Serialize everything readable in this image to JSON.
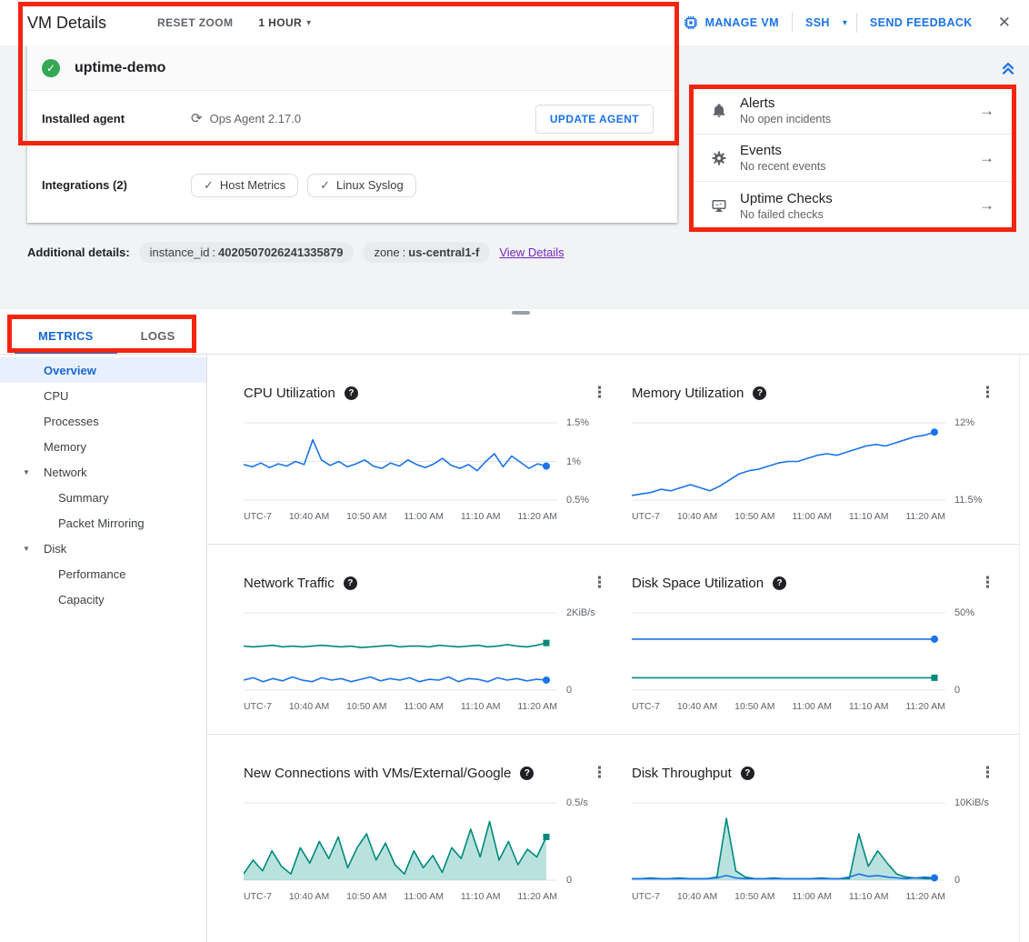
{
  "colors": {
    "primary_blue": "#1a73e8",
    "active_tab_blue": "#1967d2",
    "teal": "#00897b",
    "green": "#34a853",
    "annotation_red": "#f3250f",
    "view_details_purple": "#7627bb"
  },
  "header": {
    "title": "VM Details",
    "reset_zoom_label": "RESET ZOOM",
    "time_range_label": "1 HOUR",
    "manage_vm_label": "MANAGE VM",
    "ssh_label": "SSH",
    "send_feedback_label": "SEND FEEDBACK"
  },
  "vm": {
    "name": "uptime-demo",
    "installed_agent_label": "Installed agent",
    "agent_version": "Ops Agent 2.17.0",
    "update_agent_label": "UPDATE AGENT",
    "integrations_label": "Integrations (2)",
    "integrations": [
      {
        "label": "Host Metrics"
      },
      {
        "label": "Linux Syslog"
      }
    ]
  },
  "side_panel": {
    "items": [
      {
        "title": "Alerts",
        "subtitle": "No open incidents"
      },
      {
        "title": "Events",
        "subtitle": "No recent events"
      },
      {
        "title": "Uptime Checks",
        "subtitle": "No failed checks"
      }
    ]
  },
  "additional_details": {
    "label": "Additional details:",
    "separator": ":",
    "chips": [
      {
        "key": "instance_id",
        "value": "4020507026241335879"
      },
      {
        "key": "zone",
        "value": "us-central1-f"
      }
    ],
    "view_details_label": "View Details"
  },
  "tabs": [
    {
      "label": "METRICS"
    },
    {
      "label": "LOGS"
    }
  ],
  "sidebar": {
    "items": [
      {
        "label": "Overview"
      },
      {
        "label": "CPU"
      },
      {
        "label": "Processes"
      },
      {
        "label": "Memory"
      },
      {
        "label": "Network"
      },
      {
        "label": "Summary"
      },
      {
        "label": "Packet Mirroring"
      },
      {
        "label": "Disk"
      },
      {
        "label": "Performance"
      },
      {
        "label": "Capacity"
      }
    ]
  },
  "chart_data": [
    {
      "type": "line",
      "name": "cpu-utilization",
      "title": "CPU Utilization",
      "ymin": 0.5,
      "ymax": 1.5,
      "x_labels": [
        "UTC-7",
        "10:40 AM",
        "10:50 AM",
        "11:00 AM",
        "11:10 AM",
        "11:20 AM"
      ],
      "y_labels": [
        {
          "text": "1.5%",
          "frac": 1
        },
        {
          "text": "1%",
          "frac": 0.5
        },
        {
          "text": "0.5%",
          "frac": 0
        }
      ],
      "series": [
        {
          "color": "#1a73e8",
          "marker": "circle",
          "values": [
            0.96,
            0.93,
            0.98,
            0.92,
            0.97,
            0.94,
            1.0,
            0.96,
            1.28,
            1.02,
            0.95,
            1.0,
            0.93,
            0.97,
            1.02,
            0.94,
            0.91,
            0.98,
            0.94,
            1.02,
            0.96,
            0.92,
            0.97,
            1.04,
            0.95,
            0.91,
            0.96,
            0.88,
            1.0,
            1.1,
            0.93,
            1.07,
            0.99,
            0.91,
            0.97,
            0.94
          ]
        }
      ]
    },
    {
      "type": "line",
      "name": "memory-utilization",
      "title": "Memory Utilization",
      "ymin": 11.5,
      "ymax": 12,
      "x_labels": [
        "UTC-7",
        "10:40 AM",
        "10:50 AM",
        "11:00 AM",
        "11:10 AM",
        "11:20 AM"
      ],
      "y_labels": [
        {
          "text": "12%",
          "frac": 1
        },
        {
          "text": "11.5%",
          "frac": 0
        }
      ],
      "series": [
        {
          "color": "#1a73e8",
          "marker": "circle",
          "values": [
            11.53,
            11.54,
            11.55,
            11.57,
            11.56,
            11.58,
            11.6,
            11.58,
            11.56,
            11.59,
            11.63,
            11.67,
            11.69,
            11.7,
            11.72,
            11.74,
            11.75,
            11.75,
            11.77,
            11.79,
            11.8,
            11.79,
            11.81,
            11.83,
            11.85,
            11.86,
            11.85,
            11.87,
            11.89,
            11.91,
            11.92,
            11.94
          ]
        }
      ]
    },
    {
      "type": "line",
      "name": "network-traffic",
      "title": "Network Traffic",
      "ymin": 0,
      "ymax": 2,
      "x_labels": [
        "UTC-7",
        "10:40 AM",
        "10:50 AM",
        "11:00 AM",
        "11:10 AM",
        "11:20 AM"
      ],
      "y_labels": [
        {
          "text": "2KiB/s",
          "frac": 1
        },
        {
          "text": "0",
          "frac": 0
        }
      ],
      "series": [
        {
          "color": "#00897b",
          "marker": "square",
          "values": [
            1.14,
            1.12,
            1.14,
            1.16,
            1.12,
            1.14,
            1.12,
            1.14,
            1.16,
            1.14,
            1.12,
            1.14,
            1.1,
            1.12,
            1.14,
            1.16,
            1.12,
            1.14,
            1.14,
            1.12,
            1.16,
            1.14,
            1.12,
            1.14,
            1.16,
            1.12,
            1.14,
            1.18,
            1.14,
            1.12,
            1.16,
            1.22
          ]
        },
        {
          "color": "#1a73e8",
          "marker": "circle",
          "values": [
            0.26,
            0.32,
            0.22,
            0.3,
            0.24,
            0.34,
            0.26,
            0.22,
            0.32,
            0.26,
            0.3,
            0.22,
            0.28,
            0.34,
            0.24,
            0.3,
            0.26,
            0.32,
            0.22,
            0.28,
            0.26,
            0.34,
            0.22,
            0.3,
            0.28,
            0.22,
            0.32,
            0.26,
            0.3,
            0.24,
            0.28,
            0.26
          ]
        }
      ]
    },
    {
      "type": "line",
      "name": "disk-space-utilization",
      "title": "Disk Space Utilization",
      "ymin": 0,
      "ymax": 50,
      "x_labels": [
        "UTC-7",
        "10:40 AM",
        "10:50 AM",
        "11:00 AM",
        "11:10 AM",
        "11:20 AM"
      ],
      "y_labels": [
        {
          "text": "50%",
          "frac": 1
        },
        {
          "text": "0",
          "frac": 0
        }
      ],
      "series": [
        {
          "color": "#1a73e8",
          "marker": "circle",
          "values": [
            33,
            33
          ]
        },
        {
          "color": "#00897b",
          "marker": "square",
          "values": [
            8,
            8
          ]
        }
      ]
    },
    {
      "type": "area",
      "name": "new-connections",
      "title": "New Connections with VMs/External/Google",
      "ymin": 0,
      "ymax": 0.5,
      "x_labels": [
        "UTC-7",
        "10:40 AM",
        "10:50 AM",
        "11:00 AM",
        "11:10 AM",
        "11:20 AM"
      ],
      "y_labels": [
        {
          "text": "0.5/s",
          "frac": 1
        },
        {
          "text": "0",
          "frac": 0
        }
      ],
      "series": [
        {
          "color": "#00897b",
          "area": true,
          "fill": "rgba(128,203,196,0.55)",
          "marker": "square",
          "values": [
            0.04,
            0.13,
            0.06,
            0.19,
            0.09,
            0.04,
            0.21,
            0.11,
            0.25,
            0.14,
            0.28,
            0.08,
            0.21,
            0.3,
            0.13,
            0.24,
            0.1,
            0.04,
            0.19,
            0.08,
            0.16,
            0.05,
            0.21,
            0.14,
            0.33,
            0.15,
            0.38,
            0.13,
            0.25,
            0.1,
            0.2,
            0.15,
            0.28
          ]
        }
      ]
    },
    {
      "type": "area",
      "name": "disk-throughput",
      "title": "Disk Throughput",
      "ymin": 0,
      "ymax": 10,
      "x_labels": [
        "UTC-7",
        "10:40 AM",
        "10:50 AM",
        "11:00 AM",
        "11:10 AM",
        "11:20 AM"
      ],
      "y_labels": [
        {
          "text": "10KiB/s",
          "frac": 1
        },
        {
          "text": "0",
          "frac": 0
        }
      ],
      "series": [
        {
          "color": "#00897b",
          "area": true,
          "fill": "rgba(128,203,196,0.55)",
          "marker": "none",
          "values": [
            0.2,
            0.2,
            0.3,
            0.2,
            0.2,
            0.3,
            0.2,
            0.2,
            0.2,
            0.4,
            8.0,
            1.2,
            0.4,
            0.2,
            0.2,
            0.3,
            0.2,
            0.2,
            0.2,
            0.2,
            0.3,
            0.2,
            0.2,
            0.2,
            6.0,
            1.8,
            3.8,
            2.2,
            0.8,
            0.4,
            0.3,
            0.2,
            0.2
          ]
        },
        {
          "color": "#1a73e8",
          "marker": "circle",
          "values": [
            0.2,
            0.2,
            0.2,
            0.2,
            0.2,
            0.2,
            0.2,
            0.2,
            0.2,
            0.3,
            0.6,
            0.3,
            0.2,
            0.2,
            0.2,
            0.2,
            0.2,
            0.2,
            0.2,
            0.2,
            0.2,
            0.2,
            0.2,
            0.4,
            0.8,
            0.5,
            0.6,
            0.4,
            0.3,
            0.2,
            0.3,
            0.4,
            0.3
          ]
        }
      ]
    }
  ]
}
